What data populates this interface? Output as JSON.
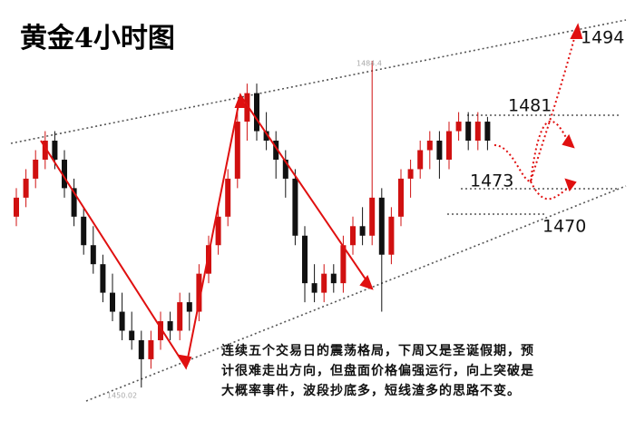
{
  "chart_data": {
    "type": "candlestick",
    "title": "黄金4小时图",
    "open": [
      1468,
      1470,
      1472,
      1474,
      1476,
      1474,
      1471,
      1468,
      1465,
      1463,
      1460,
      1458,
      1456,
      1455,
      1453,
      1455,
      1457,
      1456,
      1459,
      1458,
      1462,
      1465,
      1468,
      1472,
      1478,
      1481,
      1477,
      1476,
      1474,
      1472,
      1466,
      1461,
      1460,
      1462,
      1461,
      1465,
      1467,
      1466,
      1470,
      1464,
      1468,
      1472,
      1473,
      1475,
      1476,
      1474,
      1477,
      1478,
      1476,
      1478
    ],
    "high": [
      1471,
      1473,
      1475,
      1477,
      1477,
      1475,
      1472,
      1469,
      1467,
      1464,
      1462,
      1460,
      1458,
      1456,
      1456,
      1458,
      1458,
      1460,
      1460,
      1463,
      1466,
      1469,
      1473,
      1479,
      1482,
      1482,
      1479,
      1477,
      1475,
      1473,
      1467,
      1463,
      1463,
      1463,
      1466,
      1468,
      1469,
      1484.4,
      1471,
      1469,
      1473,
      1474,
      1476,
      1477,
      1477,
      1478,
      1479,
      1479,
      1479,
      1478.5
    ],
    "low": [
      1467,
      1469,
      1471,
      1473,
      1473,
      1470,
      1467,
      1464,
      1462,
      1459,
      1457,
      1455,
      1454,
      1450.02,
      1452,
      1454,
      1455,
      1455,
      1456,
      1457,
      1461,
      1464,
      1467,
      1471,
      1476,
      1476,
      1475,
      1472,
      1470,
      1465,
      1459,
      1459,
      1459,
      1460,
      1460,
      1464,
      1465,
      1465,
      1458,
      1463,
      1467,
      1470,
      1472,
      1473,
      1472,
      1473,
      1476,
      1475,
      1475,
      1475
    ],
    "close": [
      1470,
      1472,
      1474,
      1476,
      1474,
      1471,
      1468,
      1465,
      1463,
      1460,
      1458,
      1456,
      1455,
      1453,
      1455,
      1457,
      1456,
      1459,
      1458,
      1462,
      1465,
      1468,
      1472,
      1478,
      1481,
      1477,
      1476,
      1474,
      1472,
      1466,
      1461,
      1460,
      1462,
      1461,
      1465,
      1467,
      1466,
      1470,
      1464,
      1468,
      1472,
      1473,
      1475,
      1476,
      1474,
      1477,
      1478,
      1476,
      1478,
      1476
    ],
    "ylim": [
      1446.5,
      1490.8
    ],
    "up_color": "#d01010",
    "down_color": "#111111",
    "level_labels": [
      1494,
      1481,
      1473,
      1470
    ],
    "note": [
      "连续五个交易日的震荡格局，下周又是圣诞假期，预",
      "计很难走出方向，但盘面价格偏强运行，向上突破是",
      "大概率事件，波段抄底多，短线渣多的思路不变。"
    ]
  }
}
